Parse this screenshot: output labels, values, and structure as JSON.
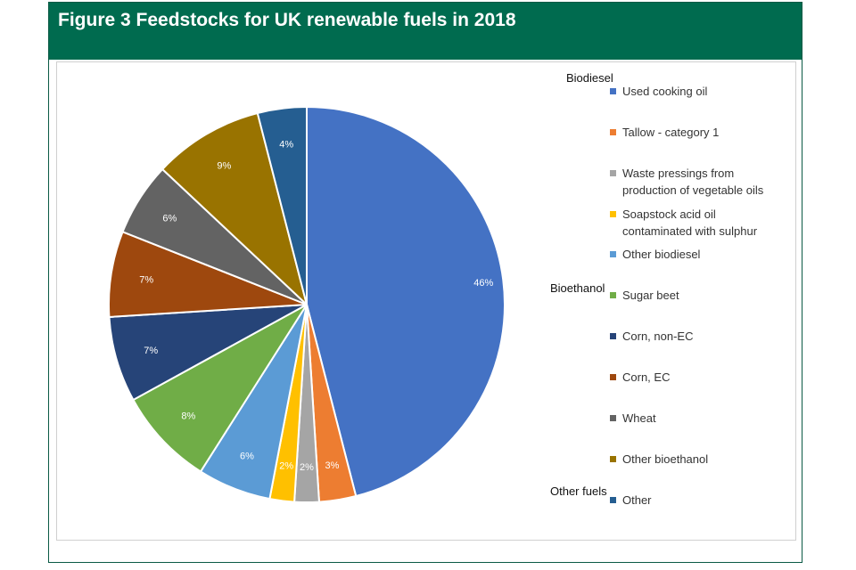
{
  "header": {
    "title": "Figure 3 Feedstocks for UK renewable fuels in 2018"
  },
  "chart_data": {
    "type": "pie",
    "title": "Figure 3 Feedstocks for UK renewable fuels in 2018",
    "start_angle_deg": 0,
    "direction": "clockwise",
    "legend_position": "right",
    "groups": [
      {
        "name": "Biodiesel",
        "items": [
          0,
          1,
          2,
          3,
          4
        ]
      },
      {
        "name": "Bioethanol",
        "items": [
          5,
          6,
          7,
          8,
          9
        ]
      },
      {
        "name": "Other fuels",
        "items": [
          10
        ]
      }
    ],
    "slices": [
      {
        "label": "Used cooking oil",
        "value": 46,
        "value_label": "46%",
        "color": "#4472c4"
      },
      {
        "label": "Tallow - category 1",
        "value": 3,
        "value_label": "3%",
        "color": "#ed7d31"
      },
      {
        "label": "Waste pressings from production of vegetable oils",
        "value": 2,
        "value_label": "2%",
        "color": "#a5a5a5"
      },
      {
        "label": "Soapstock acid oil contaminated with sulphur",
        "value": 2,
        "value_label": "2%",
        "color": "#ffc000"
      },
      {
        "label": "Other biodiesel",
        "value": 6,
        "value_label": "6%",
        "color": "#5b9bd5"
      },
      {
        "label": "Sugar beet",
        "value": 8,
        "value_label": "8%",
        "color": "#70ad47"
      },
      {
        "label": "Corn, non-EC",
        "value": 7,
        "value_label": "7%",
        "color": "#264478"
      },
      {
        "label": "Corn, EC",
        "value": 7,
        "value_label": "7%",
        "color": "#9e480e"
      },
      {
        "label": "Wheat",
        "value": 6,
        "value_label": "6%",
        "color": "#636363"
      },
      {
        "label": "Other bioethanol",
        "value": 9,
        "value_label": "9%",
        "color": "#997300"
      },
      {
        "label": "Other",
        "value": 4,
        "value_label": "4%",
        "color": "#255e91"
      }
    ]
  }
}
